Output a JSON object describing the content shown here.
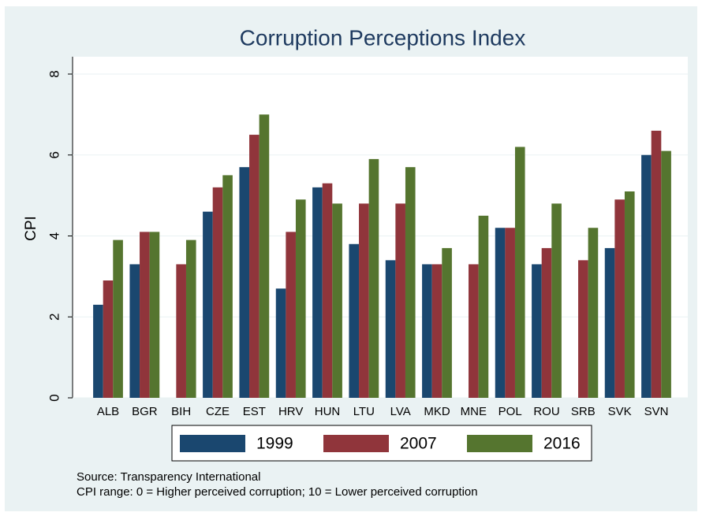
{
  "chart_data": {
    "type": "bar",
    "title": "Corruption Perceptions Index",
    "y_label": "CPI",
    "categories": [
      "ALB",
      "BGR",
      "BIH",
      "CZE",
      "EST",
      "HRV",
      "HUN",
      "LTU",
      "LVA",
      "MKD",
      "MNE",
      "POL",
      "ROU",
      "SRB",
      "SVK",
      "SVN"
    ],
    "series": [
      {
        "name": "1999",
        "color": "#1a476f",
        "values": [
          2.3,
          3.3,
          null,
          4.6,
          5.7,
          2.7,
          5.2,
          3.8,
          3.4,
          3.3,
          null,
          4.2,
          3.3,
          null,
          3.7,
          6.0
        ]
      },
      {
        "name": "2007",
        "color": "#90353b",
        "values": [
          2.9,
          4.1,
          3.3,
          5.2,
          6.5,
          4.1,
          5.3,
          4.8,
          4.8,
          3.3,
          3.3,
          4.2,
          3.7,
          3.4,
          4.9,
          6.6
        ]
      },
      {
        "name": "2016",
        "color": "#55752f",
        "values": [
          3.9,
          4.1,
          3.9,
          5.5,
          7.0,
          4.9,
          4.8,
          5.9,
          5.7,
          3.7,
          4.5,
          6.2,
          4.8,
          4.2,
          5.1,
          6.1
        ]
      }
    ],
    "ylim": [
      0,
      8
    ],
    "yticks": [
      0,
      2,
      4,
      6,
      8
    ],
    "grid": true,
    "notes": [
      "Source: Transparency International",
      "CPI range: 0 = Higher perceived corruption; 10 = Lower perceived corruption"
    ]
  }
}
